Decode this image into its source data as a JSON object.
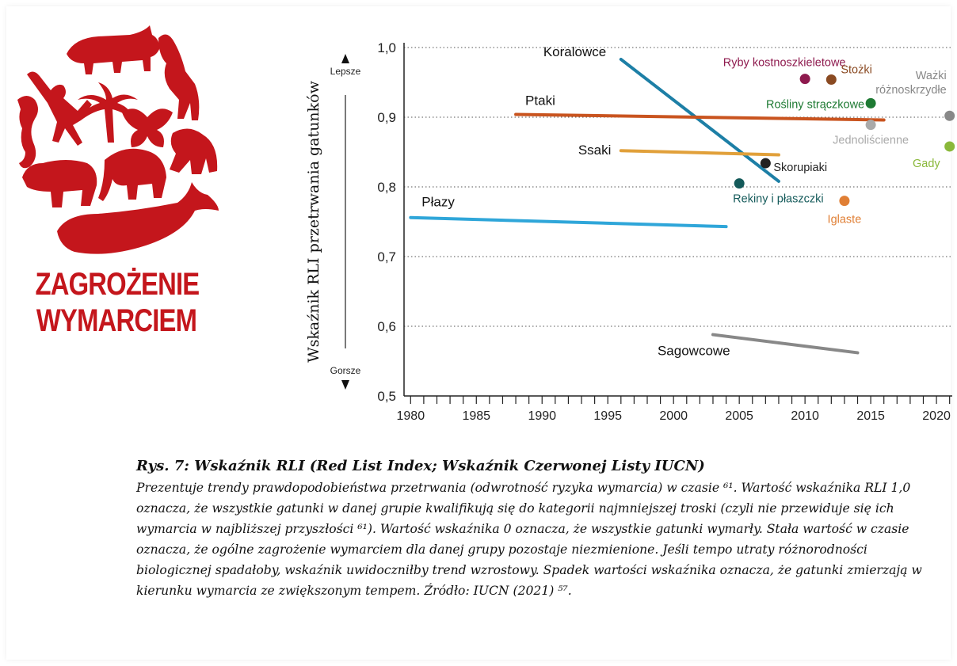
{
  "logo": {
    "line1": "ZAGROŻENIE",
    "line2": "WYMARCIEM",
    "color": "#c4161c"
  },
  "chart_data": {
    "type": "line",
    "ylabel": "Wskaźnik RLI przetrwania gatunków",
    "y_arrow_top": "Lepsze",
    "y_arrow_bottom": "Gorsze",
    "xlim": [
      1979.5,
      2021.2
    ],
    "ylim": [
      0.5,
      1.0
    ],
    "xticks": [
      1980,
      1985,
      1990,
      1995,
      2000,
      2005,
      2010,
      2015,
      2020
    ],
    "yticks": [
      {
        "v": 0.5,
        "label": "0,5"
      },
      {
        "v": 0.6,
        "label": "0,6"
      },
      {
        "v": 0.7,
        "label": "0,7"
      },
      {
        "v": 0.8,
        "label": "0,8"
      },
      {
        "v": 0.9,
        "label": "0,9"
      },
      {
        "v": 1.0,
        "label": "1,0"
      }
    ],
    "grid": "horizontal dotted",
    "series": [
      {
        "name": "Koralowce",
        "color": "#1d7fa6",
        "x": [
          1996,
          2008
        ],
        "y": [
          0.983,
          0.808
        ]
      },
      {
        "name": "Ptaki",
        "color": "#c9541f",
        "x": [
          1988,
          2016
        ],
        "y": [
          0.904,
          0.896
        ]
      },
      {
        "name": "Ssaki",
        "color": "#e1a03a",
        "x": [
          1996,
          2008
        ],
        "y": [
          0.852,
          0.846
        ]
      },
      {
        "name": "Płazy",
        "color": "#2fa6d9",
        "x": [
          1980,
          2004
        ],
        "y": [
          0.756,
          0.743
        ]
      },
      {
        "name": "Sagowcowe",
        "color": "#888888",
        "x": [
          2003,
          2014
        ],
        "y": [
          0.588,
          0.562
        ]
      }
    ],
    "points": [
      {
        "name": "Ryby kostnoszkieletowe",
        "color": "#8e1a4e",
        "x": 2010,
        "y": 0.955
      },
      {
        "name": "Stożki",
        "color": "#8a4a22",
        "x": 2012,
        "y": 0.954
      },
      {
        "name": "Rośliny strączkowe",
        "color": "#1e7a33",
        "x": 2015,
        "y": 0.92
      },
      {
        "name": "Jednoliścienne",
        "color": "#aaaaaa",
        "x": 2015,
        "y": 0.889
      },
      {
        "name": "Ważki różnoskrzydłe",
        "color": "#888888",
        "x": 2021,
        "y": 0.902
      },
      {
        "name": "Gady",
        "color": "#8ab83a",
        "x": 2021,
        "y": 0.858
      },
      {
        "name": "Skorupiaki",
        "color": "#222222",
        "x": 2007,
        "y": 0.834
      },
      {
        "name": "Rekiny i płaszczki",
        "color": "#145a5a",
        "x": 2005,
        "y": 0.805
      },
      {
        "name": "Iglaste",
        "color": "#e07f35",
        "x": 2013,
        "y": 0.78
      }
    ]
  },
  "caption": {
    "title": "Rys. 7: Wskaźnik RLI (Red List Index; Wskaźnik Czerwonej Listy IUCN)",
    "text": "Prezentuje trendy prawdopodobieństwa przetrwania (odwrotność ryzyka wymarcia) w czasie ⁶¹. Wartość wskaźnika RLI 1,0 oznacza, że wszystkie gatunki w danej grupie kwalifikują się do kategorii najmniejszej troski (czyli nie przewiduje się ich wymarcia w najbliższej przyszłości ⁶¹). Wartość wskaźnika 0 oznacza, że wszystkie gatunki wymarły. Stała wartość w czasie oznacza, że ogólne zagrożenie wymarciem dla danej grupy pozostaje niezmienione. Jeśli tempo utraty różnorodności biologicznej spadałoby, wskaźnik uwidoczniłby trend wzrostowy. Spadek wartości wskaźnika oznacza, że gatunki zmierzają w kierunku wymarcia ze zwiększonym tempem. Źródło: IUCN (2021) ⁵⁷."
  }
}
